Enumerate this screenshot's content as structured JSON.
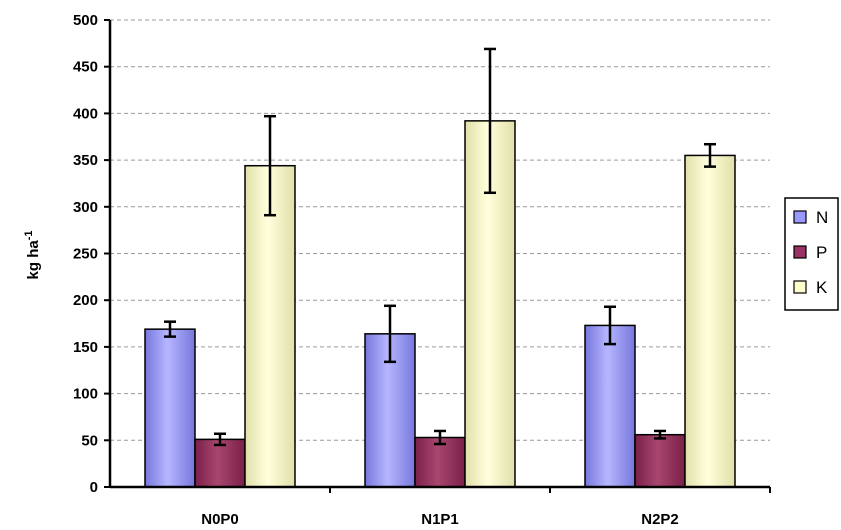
{
  "chart_data": {
    "type": "bar",
    "title": "",
    "xlabel": "",
    "ylabel": "kg ha",
    "ylabel_sup": "-1",
    "ylim": [
      0,
      500
    ],
    "ytick_step": 50,
    "grid": true,
    "legend_position": "right",
    "categories": [
      "N0P0",
      "N1P1",
      "N2P2"
    ],
    "series": [
      {
        "name": "N",
        "color": "#9999ff",
        "values": [
          169,
          164,
          173
        ],
        "errors": [
          8,
          30,
          20
        ]
      },
      {
        "name": "P",
        "color": "#993366",
        "values": [
          51,
          53,
          56
        ],
        "errors": [
          6,
          7,
          4
        ]
      },
      {
        "name": "K",
        "color": "#ffffcc",
        "values": [
          344,
          392,
          355
        ],
        "errors": [
          53,
          77,
          12
        ]
      }
    ]
  }
}
